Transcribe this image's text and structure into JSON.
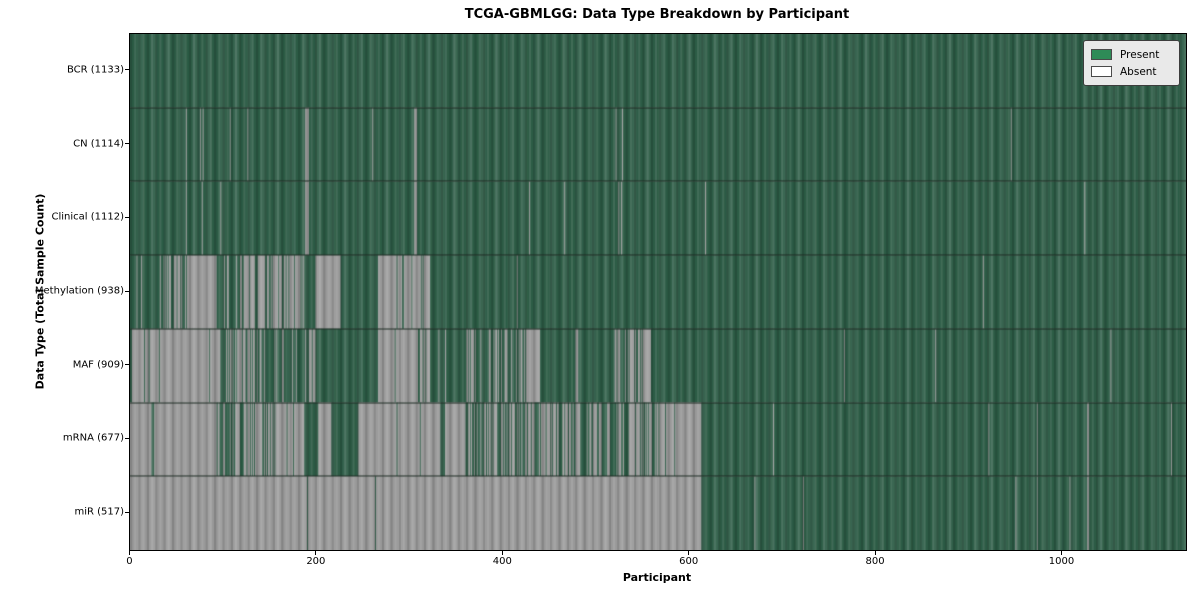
{
  "title": "TCGA-GBMLGG: Data Type Breakdown by Participant",
  "xlabel": "Participant",
  "ylabel": "Data Type (Total Sample Count)",
  "legend": {
    "present_label": "Present",
    "absent_label": "Absent"
  },
  "colors": {
    "present_legend": "#2e8b57",
    "absent_legend": "#ffffff",
    "present_fill": "#2d5c46",
    "absent_fill": "#9a9a9a",
    "row_separator": "#1c2b22",
    "legend_background": "#e9e9e9",
    "plot_border": "#000000"
  },
  "chart_data": {
    "type": "heatmap",
    "title": "TCGA-GBMLGG: Data Type Breakdown by Participant",
    "xlabel": "Participant",
    "ylabel": "Data Type (Total Sample Count)",
    "legend_entries": [
      "Present",
      "Absent"
    ],
    "legend_position": "upper right",
    "n_participants": 1133,
    "x_range": [
      0,
      1133
    ],
    "x_ticks": [
      0,
      200,
      400,
      600,
      800,
      1000
    ],
    "cell_states": [
      "present",
      "absent"
    ],
    "segment_format": "[start_participant, end_participant, state] ; state 1=present, 0=absent, fraction=mixed region with that fraction absent",
    "rows": [
      {
        "label": "BCR (1133)",
        "name": "BCR",
        "present_count": 1133,
        "segments": [
          [
            0,
            1133,
            1
          ]
        ]
      },
      {
        "label": "CN (1114)",
        "name": "CN",
        "present_count": 1114,
        "segments": [
          [
            0,
            60,
            1
          ],
          [
            60,
            61,
            0
          ],
          [
            61,
            75,
            1
          ],
          [
            75,
            76,
            0
          ],
          [
            76,
            78,
            1
          ],
          [
            78,
            79,
            0
          ],
          [
            79,
            107,
            1
          ],
          [
            107,
            108,
            0
          ],
          [
            108,
            126,
            1
          ],
          [
            126,
            127,
            0
          ],
          [
            127,
            188,
            1
          ],
          [
            188,
            192,
            0
          ],
          [
            192,
            260,
            1
          ],
          [
            260,
            261,
            0
          ],
          [
            261,
            305,
            1
          ],
          [
            305,
            308,
            0
          ],
          [
            308,
            521,
            1
          ],
          [
            521,
            522,
            0
          ],
          [
            522,
            528,
            1
          ],
          [
            528,
            529,
            0
          ],
          [
            529,
            945,
            1
          ],
          [
            945,
            946,
            0
          ],
          [
            946,
            1133,
            1
          ]
        ]
      },
      {
        "label": "Clinical (1112)",
        "name": "Clinical",
        "present_count": 1112,
        "segments": [
          [
            0,
            60,
            1
          ],
          [
            60,
            61,
            0
          ],
          [
            61,
            77,
            1
          ],
          [
            77,
            78,
            0
          ],
          [
            78,
            97,
            1
          ],
          [
            97,
            98,
            0
          ],
          [
            98,
            188,
            1
          ],
          [
            188,
            192,
            0
          ],
          [
            192,
            305,
            1
          ],
          [
            305,
            308,
            0
          ],
          [
            308,
            428,
            1
          ],
          [
            428,
            429,
            0
          ],
          [
            429,
            466,
            1
          ],
          [
            466,
            467,
            0
          ],
          [
            467,
            524,
            1
          ],
          [
            524,
            525,
            0
          ],
          [
            525,
            527,
            1
          ],
          [
            527,
            528,
            0
          ],
          [
            528,
            617,
            1
          ],
          [
            617,
            618,
            0
          ],
          [
            618,
            1024,
            1
          ],
          [
            1024,
            1025,
            0
          ],
          [
            1025,
            1133,
            1
          ]
        ]
      },
      {
        "label": "Methylation (938)",
        "name": "Methylation",
        "present_count": 938,
        "segments": [
          [
            0,
            5,
            1
          ],
          [
            5,
            31,
            0.2
          ],
          [
            31,
            62,
            0.5
          ],
          [
            62,
            93,
            0
          ],
          [
            93,
            101,
            1
          ],
          [
            101,
            118,
            0.3
          ],
          [
            118,
            143,
            0.7
          ],
          [
            143,
            159,
            0.5
          ],
          [
            159,
            187,
            0.85
          ],
          [
            187,
            199,
            1
          ],
          [
            199,
            226,
            0
          ],
          [
            226,
            266,
            1
          ],
          [
            266,
            322,
            0.9
          ],
          [
            322,
            415,
            1
          ],
          [
            415,
            416,
            0
          ],
          [
            416,
            915,
            1
          ],
          [
            915,
            916,
            0
          ],
          [
            916,
            1133,
            1
          ]
        ]
      },
      {
        "label": "MAF (909)",
        "name": "MAF",
        "present_count": 909,
        "segments": [
          [
            0,
            2,
            1
          ],
          [
            2,
            15,
            0
          ],
          [
            15,
            16,
            1
          ],
          [
            16,
            20,
            0
          ],
          [
            20,
            21,
            1
          ],
          [
            21,
            31,
            0
          ],
          [
            31,
            32,
            1
          ],
          [
            32,
            85,
            0
          ],
          [
            85,
            86,
            1
          ],
          [
            86,
            96,
            0
          ],
          [
            96,
            114,
            0.3
          ],
          [
            114,
            141,
            0.5
          ],
          [
            141,
            188,
            0.25
          ],
          [
            188,
            204,
            0.4
          ],
          [
            204,
            266,
            1
          ],
          [
            266,
            284,
            0
          ],
          [
            284,
            285,
            1
          ],
          [
            285,
            309,
            0
          ],
          [
            309,
            322,
            0.5
          ],
          [
            322,
            331,
            1
          ],
          [
            331,
            332,
            0
          ],
          [
            332,
            338,
            1
          ],
          [
            338,
            339,
            0
          ],
          [
            339,
            360,
            1
          ],
          [
            360,
            386,
            0.3
          ],
          [
            386,
            427,
            0.45
          ],
          [
            427,
            440,
            0
          ],
          [
            440,
            478,
            1
          ],
          [
            478,
            481,
            0
          ],
          [
            481,
            519,
            1
          ],
          [
            519,
            553,
            0.5
          ],
          [
            553,
            559,
            0
          ],
          [
            559,
            766,
            1
          ],
          [
            766,
            767,
            0
          ],
          [
            767,
            864,
            1
          ],
          [
            864,
            865,
            0
          ],
          [
            865,
            1052,
            1
          ],
          [
            1052,
            1053,
            0
          ],
          [
            1053,
            1133,
            1
          ]
        ]
      },
      {
        "label": "mRNA (677)",
        "name": "mRNA",
        "present_count": 677,
        "segments": [
          [
            0,
            23,
            0
          ],
          [
            23,
            26,
            1
          ],
          [
            26,
            93,
            0
          ],
          [
            93,
            122,
            0.5
          ],
          [
            122,
            158,
            0.7
          ],
          [
            158,
            187,
            0.8
          ],
          [
            187,
            202,
            1
          ],
          [
            202,
            216,
            0
          ],
          [
            216,
            245,
            1
          ],
          [
            245,
            286,
            0
          ],
          [
            286,
            287,
            1
          ],
          [
            287,
            311,
            0
          ],
          [
            311,
            312,
            1
          ],
          [
            312,
            333,
            0
          ],
          [
            333,
            338,
            1
          ],
          [
            338,
            360,
            0
          ],
          [
            360,
            386,
            0.35
          ],
          [
            386,
            487,
            0.6
          ],
          [
            487,
            538,
            0.45
          ],
          [
            538,
            586,
            0.6
          ],
          [
            586,
            613,
            0
          ],
          [
            613,
            690,
            1
          ],
          [
            690,
            691,
            0
          ],
          [
            691,
            921,
            1
          ],
          [
            921,
            922,
            0
          ],
          [
            922,
            973,
            1
          ],
          [
            973,
            974,
            0
          ],
          [
            974,
            1027,
            1
          ],
          [
            1027,
            1029,
            0
          ],
          [
            1029,
            1117,
            1
          ],
          [
            1117,
            1118,
            0
          ],
          [
            1118,
            1133,
            1
          ]
        ]
      },
      {
        "label": "miR (517)",
        "name": "miR",
        "present_count": 517,
        "segments": [
          [
            0,
            190,
            0
          ],
          [
            190,
            191,
            1
          ],
          [
            191,
            263,
            0
          ],
          [
            263,
            264,
            1
          ],
          [
            264,
            613,
            0
          ],
          [
            613,
            670,
            1
          ],
          [
            670,
            671,
            0
          ],
          [
            671,
            722,
            1
          ],
          [
            722,
            723,
            0
          ],
          [
            723,
            950,
            1
          ],
          [
            950,
            951,
            0
          ],
          [
            951,
            973,
            1
          ],
          [
            973,
            974,
            0
          ],
          [
            974,
            1008,
            1
          ],
          [
            1008,
            1009,
            0
          ],
          [
            1009,
            1027,
            1
          ],
          [
            1027,
            1029,
            0
          ],
          [
            1029,
            1133,
            1
          ]
        ]
      }
    ]
  }
}
